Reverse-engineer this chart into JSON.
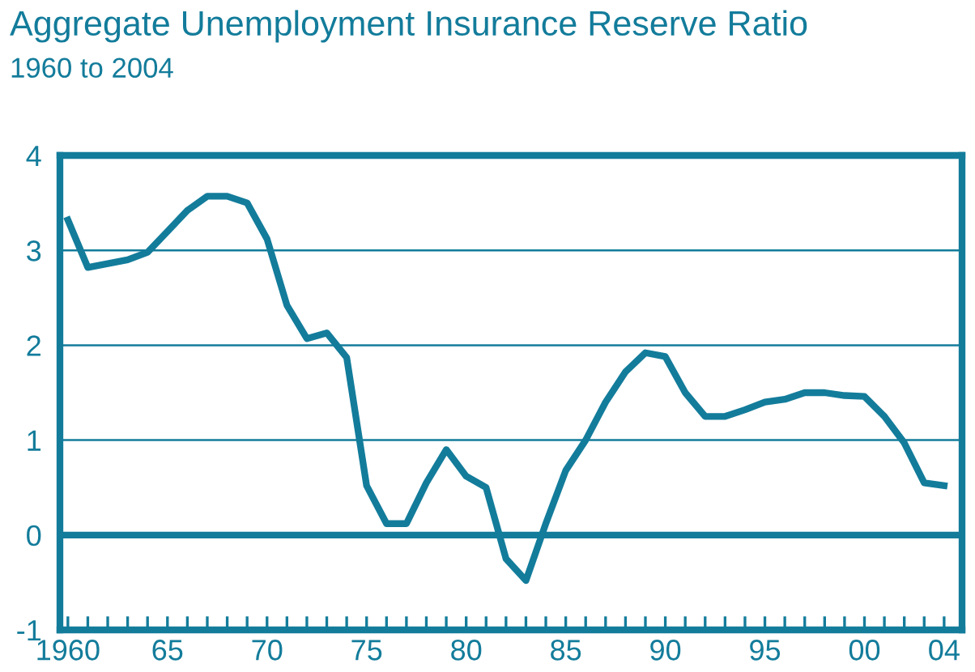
{
  "chart_data": {
    "type": "line",
    "title": "Aggregate Unemployment Insurance Reserve Ratio",
    "subtitle": "1960 to 2004",
    "x": [
      1960,
      1961,
      1962,
      1963,
      1964,
      1965,
      1966,
      1967,
      1968,
      1969,
      1970,
      1971,
      1972,
      1973,
      1974,
      1975,
      1976,
      1977,
      1978,
      1979,
      1980,
      1981,
      1982,
      1983,
      1984,
      1985,
      1986,
      1987,
      1988,
      1989,
      1990,
      1991,
      1992,
      1993,
      1994,
      1995,
      1996,
      1997,
      1998,
      1999,
      2000,
      2001,
      2002,
      2003,
      2004
    ],
    "series": [
      {
        "color": "#137c9b",
        "values": [
          3.32,
          2.82,
          2.86,
          2.9,
          2.98,
          3.2,
          3.42,
          3.57,
          3.57,
          3.5,
          3.12,
          2.42,
          2.07,
          2.13,
          1.87,
          0.52,
          0.12,
          0.12,
          0.55,
          0.9,
          0.62,
          0.5,
          -0.25,
          -0.48,
          0.12,
          0.68,
          1.0,
          1.4,
          1.72,
          1.92,
          1.88,
          1.5,
          1.25,
          1.25,
          1.32,
          1.4,
          1.43,
          1.5,
          1.5,
          1.47,
          1.46,
          1.25,
          0.97,
          0.55,
          0.52
        ]
      }
    ],
    "xlim": [
      1959.6,
      2004.9
    ],
    "ylim": [
      -1,
      4
    ],
    "xticks": [
      {
        "value": 1960,
        "label": "1960"
      },
      {
        "value": 1961,
        "label": null
      },
      {
        "value": 1962,
        "label": null
      },
      {
        "value": 1963,
        "label": null
      },
      {
        "value": 1964,
        "label": null
      },
      {
        "value": 1965,
        "label": "65"
      },
      {
        "value": 1966,
        "label": null
      },
      {
        "value": 1967,
        "label": null
      },
      {
        "value": 1968,
        "label": null
      },
      {
        "value": 1969,
        "label": null
      },
      {
        "value": 1970,
        "label": "70"
      },
      {
        "value": 1971,
        "label": null
      },
      {
        "value": 1972,
        "label": null
      },
      {
        "value": 1973,
        "label": null
      },
      {
        "value": 1974,
        "label": null
      },
      {
        "value": 1975,
        "label": "75"
      },
      {
        "value": 1976,
        "label": null
      },
      {
        "value": 1977,
        "label": null
      },
      {
        "value": 1978,
        "label": null
      },
      {
        "value": 1979,
        "label": null
      },
      {
        "value": 1980,
        "label": "80"
      },
      {
        "value": 1981,
        "label": null
      },
      {
        "value": 1982,
        "label": null
      },
      {
        "value": 1983,
        "label": null
      },
      {
        "value": 1984,
        "label": null
      },
      {
        "value": 1985,
        "label": "85"
      },
      {
        "value": 1986,
        "label": null
      },
      {
        "value": 1987,
        "label": null
      },
      {
        "value": 1988,
        "label": null
      },
      {
        "value": 1989,
        "label": null
      },
      {
        "value": 1990,
        "label": "90"
      },
      {
        "value": 1991,
        "label": null
      },
      {
        "value": 1992,
        "label": null
      },
      {
        "value": 1993,
        "label": null
      },
      {
        "value": 1994,
        "label": null
      },
      {
        "value": 1995,
        "label": "95"
      },
      {
        "value": 1996,
        "label": null
      },
      {
        "value": 1997,
        "label": null
      },
      {
        "value": 1998,
        "label": null
      },
      {
        "value": 1999,
        "label": null
      },
      {
        "value": 2000,
        "label": "00"
      },
      {
        "value": 2001,
        "label": null
      },
      {
        "value": 2002,
        "label": null
      },
      {
        "value": 2003,
        "label": null
      },
      {
        "value": 2004,
        "label": "04"
      }
    ],
    "yticks": [
      -1,
      0,
      1,
      2,
      3,
      4
    ],
    "ref_lines": [
      {
        "axis": "y",
        "value": 0,
        "color": "#137c9b"
      }
    ],
    "grid": "y",
    "legend": false,
    "marker": "none",
    "line_style": "solid"
  }
}
